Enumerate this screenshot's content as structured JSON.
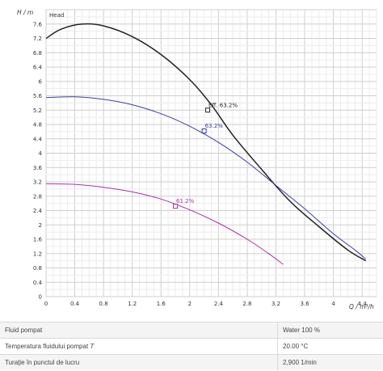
{
  "chart_data": {
    "type": "line",
    "title": "Head",
    "ylabel": "H / m",
    "xlabel": "Q / m³/h",
    "xlim": [
      0,
      4.6
    ],
    "ylim": [
      0,
      8
    ],
    "x_ticks": [
      "0",
      "0.4",
      "0.8",
      "1.2",
      "1.6",
      "2",
      "2.4",
      "2.8",
      "3.2",
      "3.6",
      "4",
      "4.4"
    ],
    "y_ticks": [
      "0",
      "0.4",
      "0.8",
      "1.2",
      "1.6",
      "2",
      "2.4",
      "2.8",
      "3.2",
      "3.6",
      "4",
      "4.4",
      "4.8",
      "5.2",
      "5.6",
      "6",
      "6.4",
      "6.8",
      "7.2",
      "7.6"
    ],
    "grid": true,
    "series": [
      {
        "color": "#222222",
        "points": [
          [
            0,
            7.2
          ],
          [
            0.2,
            7.45
          ],
          [
            0.5,
            7.6
          ],
          [
            0.8,
            7.55
          ],
          [
            1.2,
            7.25
          ],
          [
            1.6,
            6.75
          ],
          [
            2.0,
            6.05
          ],
          [
            2.3,
            5.35
          ],
          [
            2.6,
            4.5
          ],
          [
            3.0,
            3.55
          ],
          [
            3.4,
            2.65
          ],
          [
            3.8,
            1.95
          ],
          [
            4.2,
            1.3
          ],
          [
            4.45,
            1.0
          ]
        ]
      },
      {
        "color": "#3b3ba8",
        "points": [
          [
            0,
            5.55
          ],
          [
            0.4,
            5.57
          ],
          [
            0.8,
            5.5
          ],
          [
            1.2,
            5.35
          ],
          [
            1.6,
            5.1
          ],
          [
            2.0,
            4.75
          ],
          [
            2.4,
            4.3
          ],
          [
            2.8,
            3.75
          ],
          [
            3.2,
            3.1
          ],
          [
            3.6,
            2.45
          ],
          [
            4.0,
            1.75
          ],
          [
            4.3,
            1.3
          ],
          [
            4.45,
            1.05
          ]
        ]
      },
      {
        "color": "#b0309b",
        "points": [
          [
            0,
            3.15
          ],
          [
            0.4,
            3.13
          ],
          [
            0.8,
            3.05
          ],
          [
            1.2,
            2.92
          ],
          [
            1.6,
            2.72
          ],
          [
            2.0,
            2.42
          ],
          [
            2.4,
            2.05
          ],
          [
            2.8,
            1.6
          ],
          [
            3.1,
            1.2
          ],
          [
            3.3,
            0.9
          ]
        ]
      }
    ],
    "annotations": [
      {
        "text": "Eff. 63.2%",
        "x": 2.25,
        "y": 5.2,
        "color": "#222222"
      },
      {
        "text": "63.2%",
        "x": 2.2,
        "y": 4.62,
        "color": "#3b3ba8"
      },
      {
        "text": "61.2%",
        "x": 1.8,
        "y": 2.52,
        "color": "#b0309b"
      }
    ]
  },
  "properties": [
    {
      "label": "Fluid pompat",
      "value": "Water 100 %"
    },
    {
      "label": "Temperatura fluidului pompat",
      "label_symbol": "T",
      "value": "20.00 °C"
    },
    {
      "label": "Turaţie în punctul de lucru",
      "value": "2,900 1/min"
    }
  ]
}
